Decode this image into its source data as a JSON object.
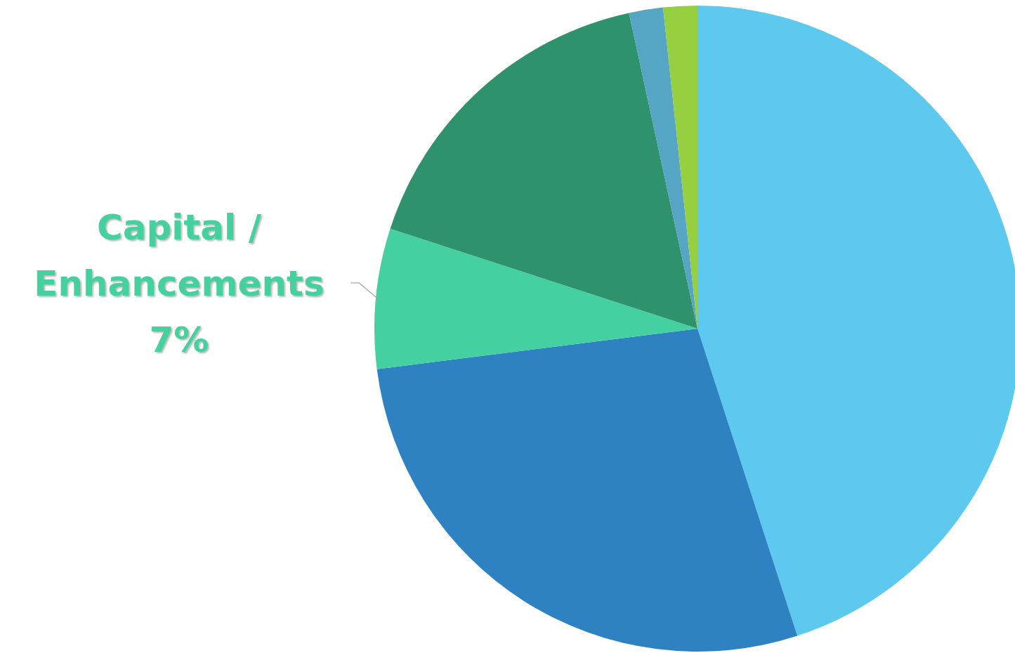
{
  "chart_data": {
    "type": "pie",
    "categories": [
      null,
      null,
      "Capital / Enhancements",
      null,
      null,
      null
    ],
    "values": [
      45,
      28,
      7,
      16.6,
      1.7,
      1.7
    ],
    "value_labels": [
      null,
      null,
      "7%",
      null,
      null,
      null
    ],
    "colors": [
      "#5ec9ee",
      "#2e82c1",
      "#44d0a0",
      "#2e936c",
      "#57a5c4",
      "#96d040"
    ]
  }
}
